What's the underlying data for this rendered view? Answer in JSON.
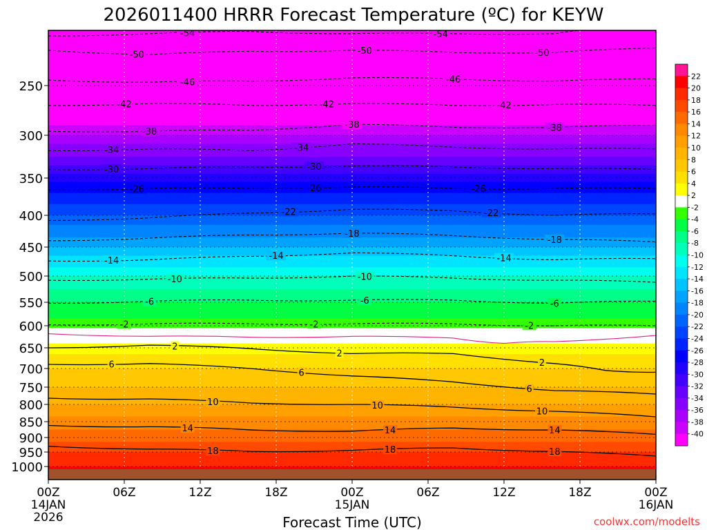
{
  "chart_data": {
    "type": "heatmap",
    "title": "2026011400 HRRR Forecast Temperature (ºC) for KEYW",
    "xlabel": "Forecast Time (UTC)",
    "ylabel": "",
    "credit": "coolwx.com/modelts",
    "x_ticks": [
      {
        "hours": 0,
        "label": "00Z",
        "sub": "14JAN",
        "sub2": "2026"
      },
      {
        "hours": 6,
        "label": "06Z",
        "sub": "",
        "sub2": ""
      },
      {
        "hours": 12,
        "label": "12Z",
        "sub": "",
        "sub2": ""
      },
      {
        "hours": 18,
        "label": "18Z",
        "sub": "",
        "sub2": ""
      },
      {
        "hours": 24,
        "label": "00Z",
        "sub": "15JAN",
        "sub2": ""
      },
      {
        "hours": 30,
        "label": "06Z",
        "sub": "",
        "sub2": ""
      },
      {
        "hours": 36,
        "label": "12Z",
        "sub": "",
        "sub2": ""
      },
      {
        "hours": 42,
        "label": "18Z",
        "sub": "",
        "sub2": ""
      },
      {
        "hours": 48,
        "label": "00Z",
        "sub": "16JAN",
        "sub2": ""
      }
    ],
    "xlim": [
      0,
      48
    ],
    "y_ticks": [
      250,
      300,
      350,
      400,
      450,
      500,
      550,
      600,
      650,
      700,
      750,
      800,
      850,
      900,
      950,
      1000
    ],
    "ylim_hpa": [
      200,
      1020
    ],
    "colorbar": {
      "labels": [
        22,
        20,
        18,
        16,
        14,
        12,
        10,
        8,
        6,
        4,
        2,
        -2,
        -4,
        -6,
        -8,
        -10,
        -12,
        -14,
        -16,
        -18,
        -20,
        -22,
        -24,
        -26,
        -28,
        -30,
        -32,
        -34,
        -36,
        -38,
        -40
      ],
      "colors": [
        "#ff1493",
        "#ff0000",
        "#ff2a00",
        "#ff4a00",
        "#ff6a00",
        "#ff8a00",
        "#ffa000",
        "#ffb400",
        "#ffc800",
        "#ffe000",
        "#ffff00",
        "#ffffff",
        "#33ff00",
        "#00ff44",
        "#00ff88",
        "#00ffbb",
        "#00ffee",
        "#00e4ff",
        "#00c4ff",
        "#00a4ff",
        "#0084ff",
        "#0064ff",
        "#0044ff",
        "#0024ff",
        "#0000ff",
        "#2200ff",
        "#4400ff",
        "#6600ff",
        "#8800ff",
        "#aa00ff",
        "#cc00ff",
        "#ff00ff"
      ]
    },
    "temperature_profile": [
      {
        "hpa": 200,
        "temp": -58
      },
      {
        "hpa": 230,
        "temp": -52
      },
      {
        "hpa": 250,
        "temp": -48
      },
      {
        "hpa": 275,
        "temp": -43
      },
      {
        "hpa": 300,
        "temp": -38
      },
      {
        "hpa": 325,
        "temp": -34
      },
      {
        "hpa": 350,
        "temp": -29
      },
      {
        "hpa": 375,
        "temp": -25
      },
      {
        "hpa": 400,
        "temp": -22
      },
      {
        "hpa": 450,
        "temp": -16
      },
      {
        "hpa": 500,
        "temp": -10
      },
      {
        "hpa": 550,
        "temp": -6
      },
      {
        "hpa": 600,
        "temp": -3
      },
      {
        "hpa": 630,
        "temp": 1
      },
      {
        "hpa": 650,
        "temp": 3
      },
      {
        "hpa": 700,
        "temp": 6
      },
      {
        "hpa": 750,
        "temp": 8
      },
      {
        "hpa": 800,
        "temp": 10
      },
      {
        "hpa": 850,
        "temp": 13
      },
      {
        "hpa": 900,
        "temp": 15
      },
      {
        "hpa": 950,
        "temp": 18
      },
      {
        "hpa": 1000,
        "temp": 20
      },
      {
        "hpa": 1020,
        "temp": 21
      }
    ],
    "contours": [
      {
        "value": -54,
        "style": "dashed",
        "hpa_at": [
          [
            0,
            205
          ],
          [
            8,
            203
          ],
          [
            16,
            201
          ],
          [
            24,
            203
          ],
          [
            32,
            203
          ],
          [
            40,
            203
          ],
          [
            44,
            198
          ],
          [
            48,
            192
          ]
        ],
        "labels": [
          [
            11,
            -54
          ],
          [
            31,
            -54
          ]
        ]
      },
      {
        "value": -50,
        "style": "dashed",
        "hpa_at": [
          [
            0,
            218
          ],
          [
            8,
            222
          ],
          [
            16,
            219
          ],
          [
            24,
            218
          ],
          [
            32,
            220
          ],
          [
            40,
            220
          ],
          [
            48,
            216
          ]
        ],
        "labels": [
          [
            7,
            -50
          ],
          [
            25,
            -50
          ],
          [
            39,
            -50
          ]
        ]
      },
      {
        "value": -46,
        "style": "dashed",
        "hpa_at": [
          [
            0,
            245
          ],
          [
            8,
            247
          ],
          [
            16,
            246
          ],
          [
            24,
            243
          ],
          [
            32,
            244
          ],
          [
            40,
            246
          ],
          [
            48,
            244
          ]
        ],
        "labels": [
          [
            11,
            -46
          ],
          [
            32,
            -46
          ]
        ]
      },
      {
        "value": -42,
        "style": "dashed",
        "hpa_at": [
          [
            0,
            270
          ],
          [
            8,
            268
          ],
          [
            16,
            270
          ],
          [
            24,
            268
          ],
          [
            32,
            270
          ],
          [
            40,
            269
          ],
          [
            48,
            270
          ]
        ],
        "labels": [
          [
            6,
            -42
          ],
          [
            22,
            -42
          ],
          [
            36,
            -42
          ]
        ]
      },
      {
        "value": -38,
        "style": "dashed",
        "hpa_at": [
          [
            0,
            296
          ],
          [
            8,
            296
          ],
          [
            16,
            295
          ],
          [
            24,
            289
          ],
          [
            32,
            292
          ],
          [
            40,
            292
          ],
          [
            48,
            290
          ]
        ],
        "labels": [
          [
            8,
            -38
          ],
          [
            24,
            -38
          ],
          [
            40,
            -38
          ]
        ]
      },
      {
        "value": -34,
        "style": "dashed",
        "hpa_at": [
          [
            0,
            318
          ],
          [
            8,
            316
          ],
          [
            16,
            318
          ],
          [
            24,
            310
          ],
          [
            32,
            314
          ],
          [
            40,
            316
          ],
          [
            48,
            316
          ]
        ],
        "labels": [
          [
            5,
            -34
          ],
          [
            20,
            -34
          ]
        ]
      },
      {
        "value": -30,
        "style": "dashed",
        "hpa_at": [
          [
            0,
            340
          ],
          [
            8,
            339
          ],
          [
            16,
            337
          ],
          [
            24,
            336
          ],
          [
            32,
            337
          ],
          [
            40,
            339
          ],
          [
            48,
            340
          ]
        ],
        "labels": [
          [
            5,
            -30
          ],
          [
            21,
            -30
          ]
        ]
      },
      {
        "value": -26,
        "style": "dashed",
        "hpa_at": [
          [
            0,
            366
          ],
          [
            8,
            364
          ],
          [
            16,
            364
          ],
          [
            24,
            362
          ],
          [
            32,
            364
          ],
          [
            40,
            364
          ],
          [
            48,
            364
          ]
        ],
        "labels": [
          [
            7,
            -26
          ],
          [
            21,
            -26
          ],
          [
            34,
            -26
          ]
        ]
      },
      {
        "value": -22,
        "style": "dashed",
        "hpa_at": [
          [
            0,
            408
          ],
          [
            8,
            404
          ],
          [
            16,
            397
          ],
          [
            24,
            392
          ],
          [
            32,
            394
          ],
          [
            40,
            400
          ],
          [
            48,
            398
          ]
        ],
        "labels": [
          [
            19,
            -22
          ],
          [
            35,
            -22
          ]
        ]
      },
      {
        "value": -18,
        "style": "dashed",
        "hpa_at": [
          [
            0,
            440
          ],
          [
            8,
            436
          ],
          [
            16,
            431
          ],
          [
            24,
            428
          ],
          [
            32,
            432
          ],
          [
            40,
            438
          ],
          [
            48,
            442
          ]
        ],
        "labels": [
          [
            24,
            -18
          ],
          [
            40,
            -18
          ]
        ]
      },
      {
        "value": -14,
        "style": "dashed",
        "hpa_at": [
          [
            0,
            474
          ],
          [
            8,
            472
          ],
          [
            16,
            466
          ],
          [
            24,
            460
          ],
          [
            32,
            465
          ],
          [
            40,
            472
          ],
          [
            48,
            470
          ]
        ],
        "labels": [
          [
            5,
            -14
          ],
          [
            18,
            -14
          ],
          [
            36,
            -14
          ]
        ]
      },
      {
        "value": -10,
        "style": "dashed",
        "hpa_at": [
          [
            0,
            508
          ],
          [
            8,
            506
          ],
          [
            16,
            504
          ],
          [
            24,
            500
          ],
          [
            32,
            504
          ],
          [
            40,
            508
          ],
          [
            48,
            512
          ]
        ],
        "labels": [
          [
            10,
            -10
          ],
          [
            25,
            -10
          ]
        ]
      },
      {
        "value": -6,
        "style": "dashed",
        "hpa_at": [
          [
            0,
            552
          ],
          [
            8,
            548
          ],
          [
            16,
            546
          ],
          [
            24,
            546
          ],
          [
            32,
            546
          ],
          [
            40,
            552
          ],
          [
            48,
            548
          ]
        ],
        "labels": [
          [
            8,
            -6
          ],
          [
            25,
            -6
          ],
          [
            40,
            -6
          ]
        ]
      },
      {
        "value": -2,
        "style": "dashed",
        "hpa_at": [
          [
            0,
            598
          ],
          [
            8,
            596
          ],
          [
            16,
            596
          ],
          [
            24,
            596
          ],
          [
            32,
            596
          ],
          [
            40,
            600
          ],
          [
            48,
            600
          ]
        ],
        "labels": [
          [
            6,
            -2
          ],
          [
            21,
            -2
          ],
          [
            38,
            -2
          ]
        ]
      },
      {
        "value": 0,
        "style": "magenta",
        "hpa_at": [
          [
            0,
            618
          ],
          [
            8,
            624
          ],
          [
            16,
            626
          ],
          [
            24,
            624
          ],
          [
            32,
            628
          ],
          [
            36,
            640
          ],
          [
            40,
            636
          ],
          [
            48,
            622
          ]
        ],
        "labels": []
      },
      {
        "value": 2,
        "style": "solid",
        "hpa_at": [
          [
            0,
            650
          ],
          [
            8,
            644
          ],
          [
            16,
            652
          ],
          [
            24,
            664
          ],
          [
            32,
            664
          ],
          [
            40,
            688
          ],
          [
            44,
            705
          ],
          [
            48,
            710
          ]
        ],
        "labels": [
          [
            10,
            2
          ],
          [
            23,
            2
          ],
          [
            39,
            2
          ]
        ]
      },
      {
        "value": 6,
        "style": "solid",
        "hpa_at": [
          [
            0,
            690
          ],
          [
            8,
            688
          ],
          [
            16,
            700
          ],
          [
            24,
            720
          ],
          [
            32,
            736
          ],
          [
            40,
            760
          ],
          [
            48,
            770
          ]
        ],
        "labels": [
          [
            5,
            6
          ],
          [
            20,
            6
          ],
          [
            38,
            6
          ]
        ]
      },
      {
        "value": 10,
        "style": "solid",
        "hpa_at": [
          [
            0,
            782
          ],
          [
            8,
            784
          ],
          [
            16,
            796
          ],
          [
            24,
            800
          ],
          [
            32,
            808
          ],
          [
            40,
            820
          ],
          [
            48,
            836
          ]
        ],
        "labels": [
          [
            13,
            10
          ],
          [
            26,
            10
          ],
          [
            39,
            10
          ]
        ]
      },
      {
        "value": 14,
        "style": "solid",
        "hpa_at": [
          [
            0,
            862
          ],
          [
            8,
            866
          ],
          [
            16,
            876
          ],
          [
            24,
            880
          ],
          [
            32,
            870
          ],
          [
            40,
            876
          ],
          [
            48,
            890
          ]
        ],
        "labels": [
          [
            11,
            14
          ],
          [
            27,
            14
          ],
          [
            40,
            14
          ]
        ]
      },
      {
        "value": 18,
        "style": "solid",
        "hpa_at": [
          [
            0,
            930
          ],
          [
            8,
            940
          ],
          [
            16,
            948
          ],
          [
            24,
            944
          ],
          [
            32,
            936
          ],
          [
            40,
            948
          ],
          [
            48,
            964
          ]
        ],
        "labels": [
          [
            13,
            18
          ],
          [
            27,
            18
          ],
          [
            40,
            18
          ]
        ]
      }
    ]
  }
}
